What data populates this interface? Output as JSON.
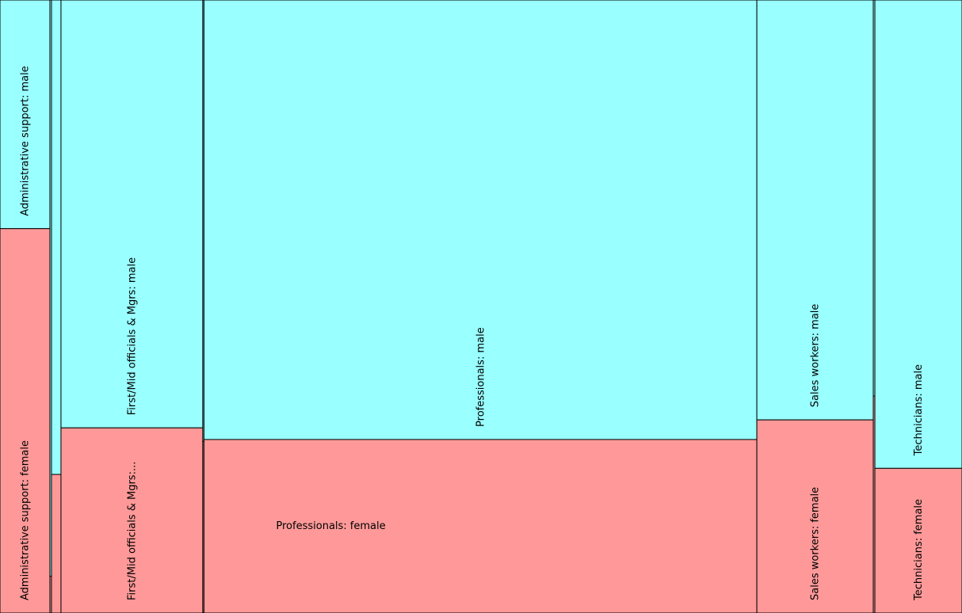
{
  "chart_data": {
    "type": "mosaic",
    "colors": {
      "male": "#99ffff",
      "female": "#ff9999",
      "border": "#000000"
    },
    "columns": [
      {
        "share": 63,
        "female_fraction": 0.627,
        "labels": {
          "male": "Administrative support: male",
          "female": "Administrative support: female"
        }
      },
      {
        "share": 2,
        "female_fraction": 0.06,
        "labels": {
          "male": "",
          "female": ""
        }
      },
      {
        "share": 12,
        "female_fraction": 0.226,
        "labels": {
          "male": "",
          "female": ""
        }
      },
      {
        "share": 179,
        "female_fraction": 0.302,
        "labels": {
          "male": "First/Mid officials & Mgrs: male",
          "female": "First/Mid officials & Mgrs:..."
        }
      },
      {
        "share": 1.5,
        "female_fraction": 0.28,
        "labels": {
          "male": "",
          "female": ""
        }
      },
      {
        "share": 698,
        "female_fraction": 0.283,
        "labels": {
          "male": "Professionals: male",
          "female": "Professionals: female"
        },
        "female_label_horizontal": true
      },
      {
        "share": 147,
        "female_fraction": 0.315,
        "labels": {
          "male": "Sales workers: male",
          "female": "Sales workers: female"
        }
      },
      {
        "share": 2,
        "female_fraction": 0.354,
        "labels": {
          "male": "",
          "female": ""
        }
      },
      {
        "share": 110,
        "female_fraction": 0.236,
        "labels": {
          "male": "Technicians: male",
          "female": "Technicians: female"
        }
      }
    ]
  }
}
